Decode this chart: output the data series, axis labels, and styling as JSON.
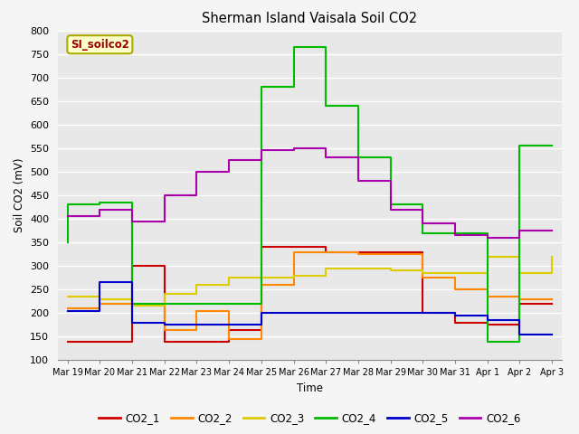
{
  "title": "Sherman Island Vaisala Soil CO2",
  "ylabel": "Soil CO2 (mV)",
  "xlabel": "Time",
  "ylim": [
    100,
    800
  ],
  "yticks": [
    100,
    150,
    200,
    250,
    300,
    350,
    400,
    450,
    500,
    550,
    600,
    650,
    700,
    750,
    800
  ],
  "label_box": "SI_soilco2",
  "plot_bg": "#e8e8e8",
  "fig_bg": "#f5f5f5",
  "x_labels": [
    "Mar 19",
    "Mar 20",
    "Mar 21",
    "Mar 22",
    "Mar 23",
    "Mar 24",
    "Mar 25",
    "Mar 26",
    "Mar 27",
    "Mar 28",
    "Mar 29",
    "Mar 30",
    "Mar 31",
    "Apr 1",
    "Apr 2",
    "Apr 3"
  ],
  "series": {
    "CO2_1": {
      "color": "#cc0000",
      "x": [
        0,
        2,
        2,
        3,
        3,
        5,
        6,
        6,
        8,
        9,
        10,
        11,
        12,
        13,
        14,
        15
      ],
      "y": [
        140,
        140,
        300,
        300,
        140,
        165,
        165,
        340,
        330,
        330,
        330,
        200,
        180,
        175,
        220,
        220
      ]
    },
    "CO2_2": {
      "color": "#ff8800",
      "x": [
        0,
        1,
        2,
        2,
        3,
        3,
        4,
        5,
        5,
        6,
        7,
        8,
        9,
        10,
        11,
        12,
        13,
        14,
        15
      ],
      "y": [
        210,
        220,
        220,
        215,
        215,
        165,
        205,
        205,
        145,
        260,
        330,
        330,
        325,
        325,
        275,
        250,
        235,
        230,
        230
      ]
    },
    "CO2_3": {
      "color": "#ddcc00",
      "x": [
        0,
        1,
        2,
        3,
        4,
        5,
        6,
        7,
        8,
        9,
        10,
        11,
        12,
        13,
        14,
        15
      ],
      "y": [
        235,
        230,
        215,
        240,
        260,
        275,
        275,
        280,
        295,
        295,
        290,
        285,
        285,
        320,
        285,
        320
      ]
    },
    "CO2_4": {
      "color": "#00bb00",
      "x": [
        0,
        0,
        1,
        2,
        3,
        4,
        5,
        6,
        6,
        7,
        8,
        9,
        10,
        11,
        12,
        13,
        13,
        14,
        15
      ],
      "y": [
        350,
        430,
        435,
        220,
        220,
        220,
        220,
        220,
        680,
        765,
        640,
        530,
        430,
        370,
        370,
        370,
        140,
        555,
        555
      ]
    },
    "CO2_5": {
      "color": "#0000cc",
      "x": [
        0,
        1,
        2,
        3,
        4,
        5,
        6,
        7,
        8,
        9,
        10,
        11,
        12,
        13,
        14,
        15
      ],
      "y": [
        205,
        265,
        180,
        175,
        175,
        175,
        200,
        200,
        200,
        200,
        200,
        200,
        195,
        185,
        155,
        155
      ]
    },
    "CO2_6": {
      "color": "#aa00aa",
      "x": [
        0,
        1,
        2,
        3,
        4,
        5,
        6,
        7,
        8,
        9,
        10,
        11,
        12,
        13,
        14,
        15
      ],
      "y": [
        405,
        420,
        395,
        450,
        500,
        525,
        545,
        550,
        530,
        480,
        420,
        390,
        365,
        360,
        375,
        375
      ]
    }
  }
}
